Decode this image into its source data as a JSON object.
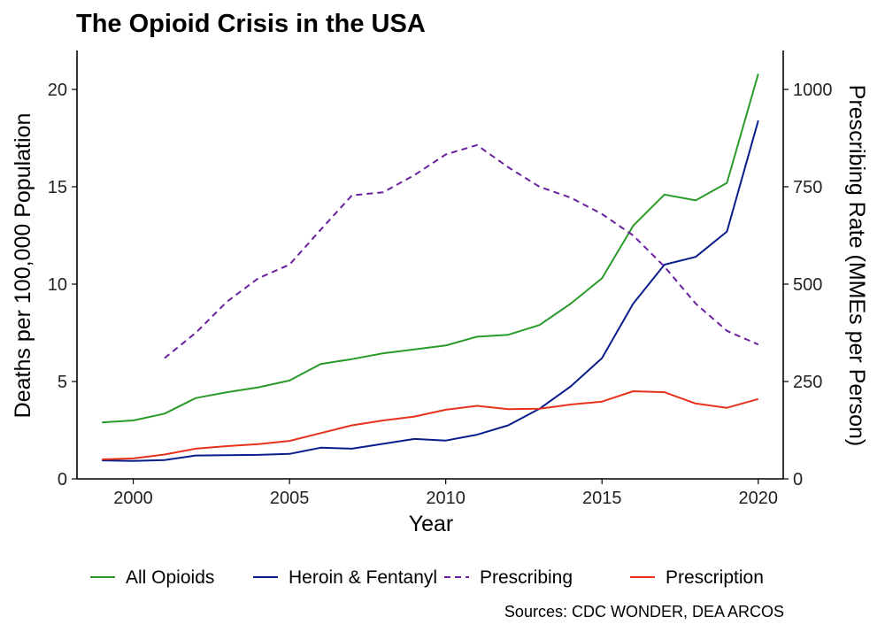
{
  "chart_data": {
    "type": "line",
    "title": "The Opioid Crisis in the USA",
    "xlabel": "Year",
    "ylabel": "Deaths per 100,000 Population",
    "y2label": "Prescribing Rate (MMEs per Person)",
    "xlim": [
      1998.2,
      2020.8
    ],
    "ylim": [
      0,
      22
    ],
    "y2lim": [
      0,
      1100
    ],
    "x_ticks": [
      2000,
      2005,
      2010,
      2015,
      2020
    ],
    "y_ticks": [
      0,
      5,
      10,
      15,
      20
    ],
    "y2_ticks": [
      0,
      250,
      500,
      750,
      1000
    ],
    "legend_position": "bottom",
    "grid": false,
    "source_note": "Sources: CDC WONDER, DEA ARCOS",
    "series": [
      {
        "name": "All Opioids",
        "axis": "left",
        "color": "#2a9a2a",
        "style": "solid",
        "x": [
          1999,
          2000,
          2001,
          2002,
          2003,
          2004,
          2005,
          2006,
          2007,
          2008,
          2009,
          2010,
          2011,
          2012,
          2013,
          2014,
          2015,
          2016,
          2017,
          2018,
          2019,
          2020
        ],
        "values": [
          2.9,
          3.0,
          3.35,
          4.15,
          4.45,
          4.7,
          5.05,
          5.9,
          6.15,
          6.45,
          6.65,
          6.85,
          7.3,
          7.4,
          7.9,
          9.0,
          10.3,
          13.0,
          14.6,
          14.3,
          15.2,
          20.8
        ]
      },
      {
        "name": "Heroin & Fentanyl",
        "axis": "left",
        "color": "#0a1e8a",
        "style": "solid",
        "x": [
          1999,
          2000,
          2001,
          2002,
          2003,
          2004,
          2005,
          2006,
          2007,
          2008,
          2009,
          2010,
          2011,
          2012,
          2013,
          2014,
          2015,
          2016,
          2017,
          2018,
          2019,
          2020
        ],
        "values": [
          0.95,
          0.92,
          0.97,
          1.2,
          1.22,
          1.23,
          1.28,
          1.6,
          1.55,
          1.8,
          2.05,
          1.97,
          2.27,
          2.75,
          3.6,
          4.75,
          6.2,
          9.0,
          11.0,
          11.4,
          12.7,
          18.4
        ]
      },
      {
        "name": "Prescribing",
        "axis": "right",
        "color": "#6a1fa0",
        "style": "dashed",
        "x": [
          2001,
          2002,
          2003,
          2004,
          2005,
          2006,
          2007,
          2008,
          2009,
          2010,
          2011,
          2012,
          2013,
          2014,
          2015,
          2016,
          2017,
          2018,
          2019,
          2020
        ],
        "values": [
          310,
          375,
          455,
          515,
          550,
          640,
          728,
          736,
          780,
          833,
          857,
          800,
          750,
          722,
          680,
          625,
          545,
          450,
          380,
          345
        ]
      },
      {
        "name": "Prescription",
        "axis": "left",
        "color": "#e8321c",
        "style": "solid",
        "x": [
          1999,
          2000,
          2001,
          2002,
          2003,
          2004,
          2005,
          2006,
          2007,
          2008,
          2009,
          2010,
          2011,
          2012,
          2013,
          2014,
          2015,
          2016,
          2017,
          2018,
          2019,
          2020
        ],
        "values": [
          1.0,
          1.05,
          1.25,
          1.55,
          1.68,
          1.78,
          1.95,
          2.35,
          2.75,
          3.0,
          3.2,
          3.55,
          3.75,
          3.58,
          3.6,
          3.82,
          3.97,
          4.5,
          4.45,
          3.87,
          3.65,
          4.1
        ]
      }
    ]
  }
}
